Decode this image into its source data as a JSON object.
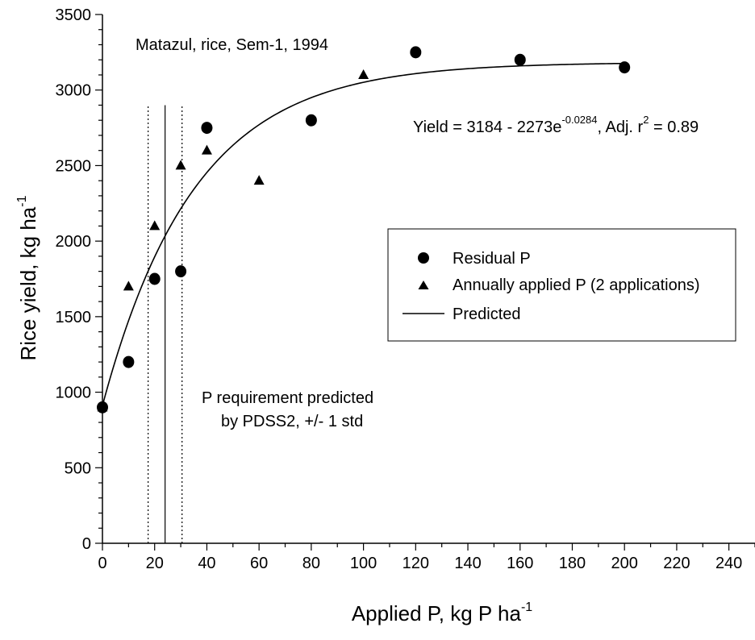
{
  "chart_data": {
    "type": "scatter",
    "xlabel": "Applied P, kg P ha",
    "xlabel_sup": "-1",
    "ylabel": "Rice yield, kg ha",
    "ylabel_sup": "-1",
    "xlim": [
      0,
      250
    ],
    "ylim": [
      0,
      3500
    ],
    "x_ticks": [
      0,
      20,
      40,
      60,
      80,
      100,
      120,
      140,
      160,
      180,
      200,
      220,
      240
    ],
    "y_ticks": [
      0,
      500,
      1000,
      1500,
      2000,
      2500,
      3000,
      3500
    ],
    "grid": false,
    "legend_position": "right",
    "series": [
      {
        "name": "Residual P",
        "marker": "circle",
        "points": [
          {
            "x": 0,
            "y": 900
          },
          {
            "x": 10,
            "y": 1200
          },
          {
            "x": 20,
            "y": 1750
          },
          {
            "x": 30,
            "y": 1800
          },
          {
            "x": 40,
            "y": 2750
          },
          {
            "x": 80,
            "y": 2800
          },
          {
            "x": 120,
            "y": 3250
          },
          {
            "x": 160,
            "y": 3200
          },
          {
            "x": 200,
            "y": 3150
          }
        ]
      },
      {
        "name": "Annually applied P (2 applications)",
        "marker": "triangle",
        "points": [
          {
            "x": 0,
            "y": 900
          },
          {
            "x": 10,
            "y": 1700
          },
          {
            "x": 20,
            "y": 2100
          },
          {
            "x": 30,
            "y": 2500
          },
          {
            "x": 40,
            "y": 2600
          },
          {
            "x": 60,
            "y": 2400
          },
          {
            "x": 100,
            "y": 3100
          }
        ]
      },
      {
        "name": "Predicted",
        "marker": "line",
        "equation": {
          "a": 3184,
          "b": 2273,
          "k": 0.0284
        },
        "x_range": [
          0,
          200
        ]
      }
    ],
    "reference_lines": [
      {
        "x": 24,
        "y_top": 2900,
        "style": "solid"
      },
      {
        "x": 17.5,
        "y_top": 2900,
        "style": "dotted"
      },
      {
        "x": 30.5,
        "y_top": 2900,
        "style": "dotted"
      }
    ],
    "annotations": {
      "title_text": "Matazul, rice, Sem-1, 1994",
      "equation_prefix": "Yield = 3184 - 2273e",
      "equation_exp": "-0.0284",
      "equation_mid": ", Adj. r",
      "equation_r_exp": "2",
      "equation_suffix": " = 0.89",
      "pdss_line1": "P requirement predicted",
      "pdss_line2": "by PDSS2, +/- 1 std"
    }
  }
}
